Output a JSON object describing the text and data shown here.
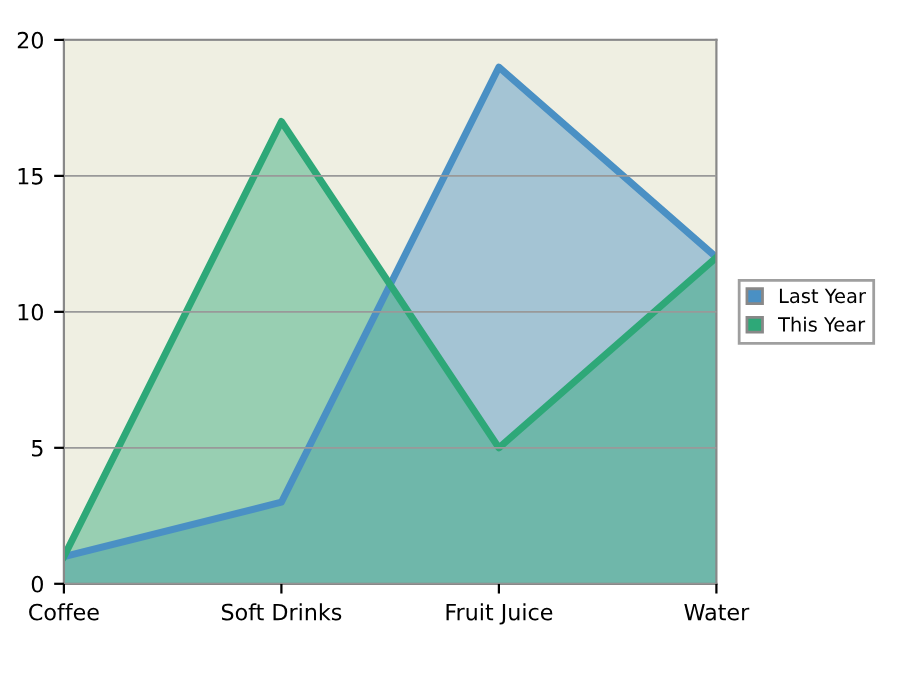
{
  "chart_data": {
    "type": "area",
    "categories": [
      "Coffee",
      "Soft Drinks",
      "Fruit Juice",
      "Water"
    ],
    "series": [
      {
        "name": "Last Year",
        "color": "#4a90c4",
        "values": [
          1,
          3,
          19,
          12
        ]
      },
      {
        "name": "This Year",
        "color": "#2ea878",
        "values": [
          1,
          17,
          5,
          12
        ]
      }
    ],
    "ylim": [
      0,
      20
    ],
    "yticks": [
      0,
      5,
      10,
      15,
      20
    ],
    "grid": "y",
    "legend": "right"
  }
}
